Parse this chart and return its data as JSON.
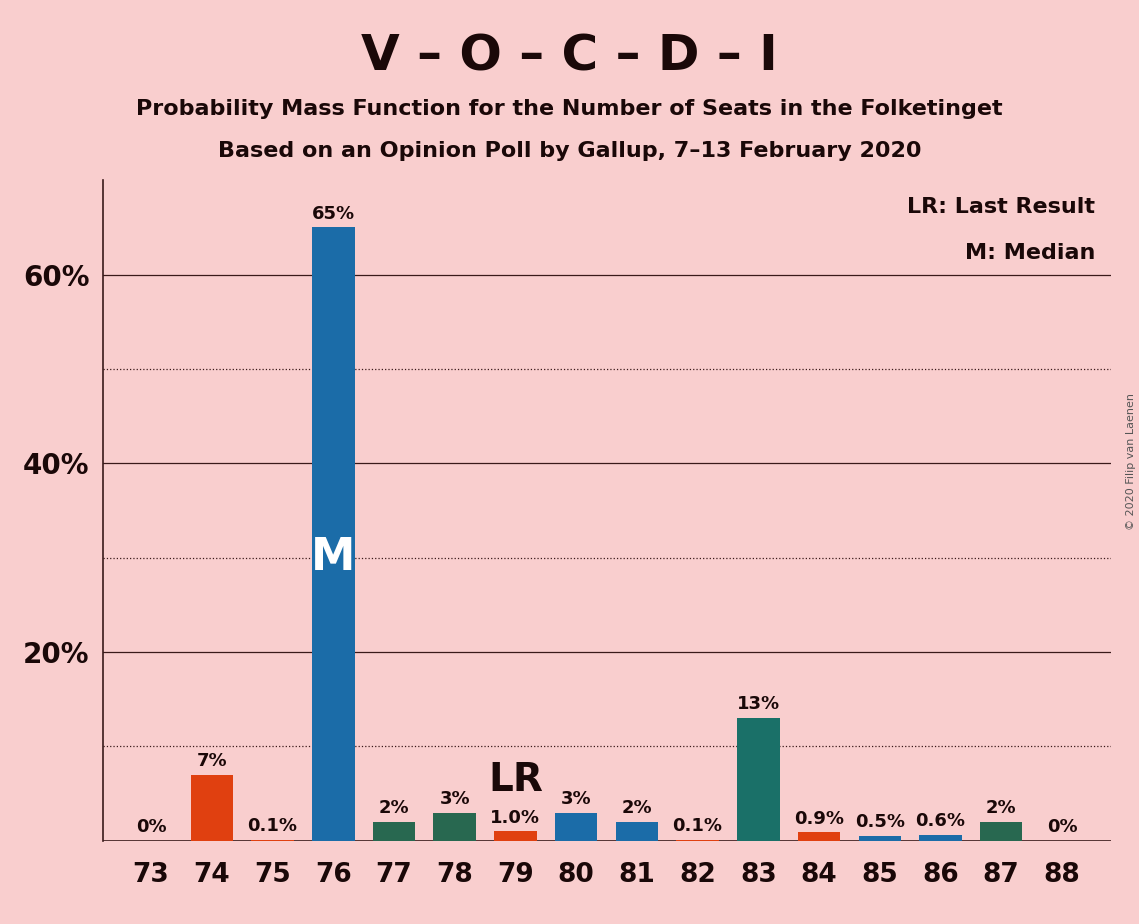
{
  "title": "V – O – C – D – I",
  "subtitle1": "Probability Mass Function for the Number of Seats in the Folketinget",
  "subtitle2": "Based on an Opinion Poll by Gallup, 7–13 February 2020",
  "copyright": "© 2020 Filip van Laenen",
  "legend_lr": "LR: Last Result",
  "legend_m": "M: Median",
  "seats": [
    73,
    74,
    75,
    76,
    77,
    78,
    79,
    80,
    81,
    82,
    83,
    84,
    85,
    86,
    87,
    88
  ],
  "values": [
    0.0,
    7.0,
    0.1,
    65.0,
    2.0,
    3.0,
    1.0,
    3.0,
    2.0,
    0.1,
    13.0,
    0.9,
    0.5,
    0.6,
    2.0,
    0.0
  ],
  "labels": [
    "0%",
    "7%",
    "0.1%",
    "65%",
    "2%",
    "3%",
    "1.0%",
    "3%",
    "2%",
    "0.1%",
    "13%",
    "0.9%",
    "0.5%",
    "0.6%",
    "2%",
    "0%"
  ],
  "colors": [
    "#E04010",
    "#E04010",
    "#E04010",
    "#1B6CA8",
    "#286850",
    "#286850",
    "#E04010",
    "#1B6CA8",
    "#1B6CA8",
    "#E04010",
    "#1A7068",
    "#E04010",
    "#1B6CA8",
    "#1B6CA8",
    "#286850",
    "#E04010"
  ],
  "median_seat": 76,
  "lr_seat": 79,
  "background_color": "#F9CECE",
  "ylim_max": 70,
  "bar_width": 0.7,
  "solid_lines": [
    20,
    40,
    60
  ],
  "dotted_lines": [
    10,
    30,
    50
  ],
  "ytick_positions": [
    20,
    40,
    60
  ],
  "ytick_labels": [
    "20%",
    "40%",
    "60%"
  ]
}
